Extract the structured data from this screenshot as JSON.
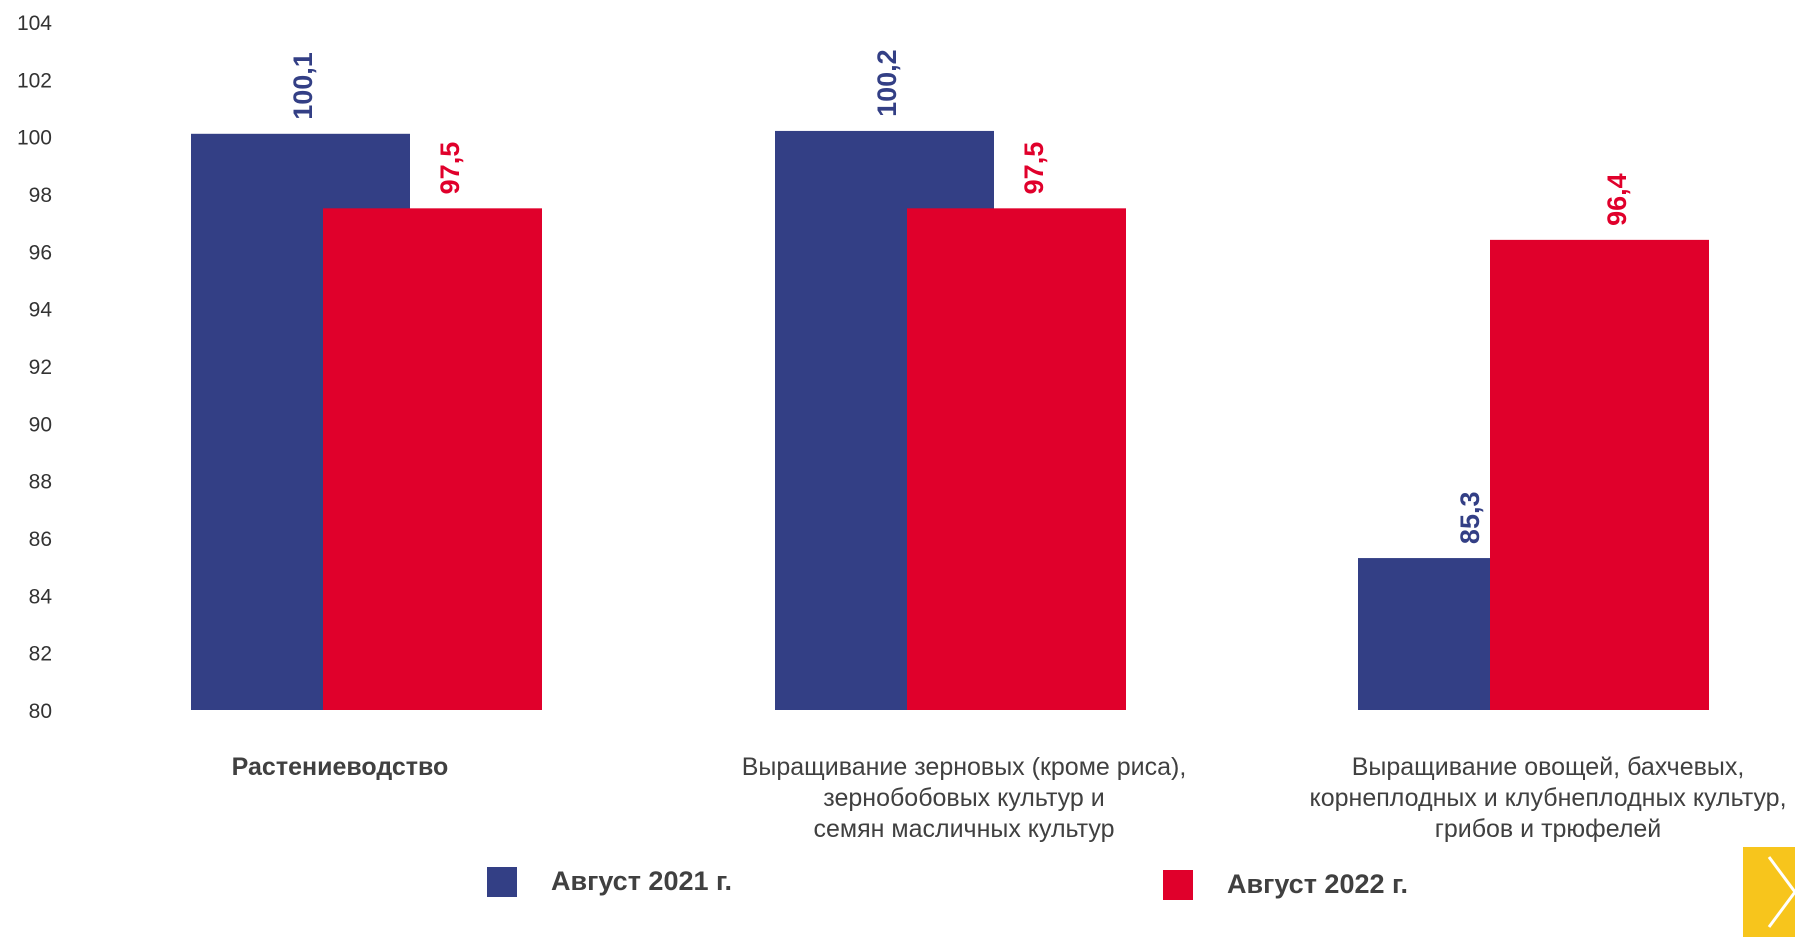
{
  "chart_data": {
    "type": "bar",
    "categories": [
      "Растениеводство",
      "Выращивание зерновых (кроме риса),\nзернобобовых культур и\nсемян масличных культур",
      "Выращивание овощей, бахчевых,\nкорнеплодных и клубнеплодных культур,\nгрибов и трюфелей"
    ],
    "series": [
      {
        "name": "Август 2021 г.",
        "color": "#333f85",
        "values": [
          100.1,
          100.2,
          85.3
        ],
        "labels": [
          "100,1",
          "100,2",
          "85,3"
        ]
      },
      {
        "name": "Август 2022 г.",
        "color": "#e0002b",
        "values": [
          97.5,
          97.5,
          96.4
        ],
        "labels": [
          "97,5",
          "97,5",
          "96,4"
        ]
      }
    ],
    "ylim": [
      80,
      104
    ],
    "yticks": [
      "80",
      "82",
      "84",
      "86",
      "88",
      "90",
      "92",
      "94",
      "96",
      "98",
      "100",
      "102",
      "104"
    ],
    "grid": false,
    "legend": "bottom"
  },
  "navigation": {
    "next_icon": "chevron-right-icon"
  }
}
